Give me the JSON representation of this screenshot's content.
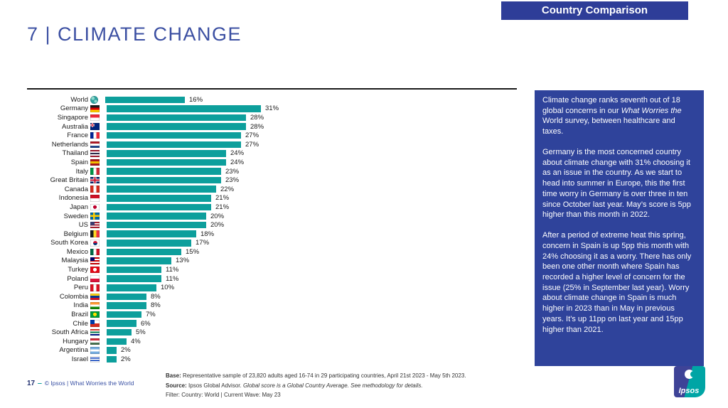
{
  "banner": {
    "label": "Country Comparison",
    "bg": "#2E3D98"
  },
  "title": "7 | CLIMATE CHANGE",
  "chart_data": {
    "type": "bar",
    "orientation": "horizontal",
    "title": "7 | CLIMATE CHANGE",
    "xlabel": "",
    "ylabel": "",
    "xlim": [
      0,
      35
    ],
    "grid": false,
    "value_suffix": "%",
    "bar_color": "#0D9F9C",
    "categories": [
      "World",
      "Germany",
      "Singapore",
      "Australia",
      "France",
      "Netherlands",
      "Thailand",
      "Spain",
      "Italy",
      "Great Britain",
      "Canada",
      "Indonesia",
      "Japan",
      "Sweden",
      "US",
      "Belgium",
      "South Korea",
      "Mexico",
      "Malaysia",
      "Turkey",
      "Poland",
      "Peru",
      "Colombia",
      "India",
      "Brazil",
      "Chile",
      "South Africa",
      "Hungary",
      "Argentina",
      "Israel"
    ],
    "values": [
      16,
      31,
      28,
      28,
      27,
      27,
      24,
      24,
      23,
      23,
      22,
      21,
      21,
      20,
      20,
      18,
      17,
      15,
      13,
      11,
      11,
      10,
      8,
      8,
      7,
      6,
      5,
      4,
      2,
      2
    ],
    "flag_icons": [
      {
        "type": "globe"
      },
      {
        "type": "h",
        "stripes": [
          "#1A1A1A",
          "#DD0000",
          "#FFCE00"
        ]
      },
      {
        "type": "h",
        "stripes": [
          "#ED2939",
          "#FFFFFF"
        ]
      },
      {
        "type": "canton",
        "stripes": [
          "#00247D"
        ],
        "corner": "jack"
      },
      {
        "type": "v",
        "stripes": [
          "#002395",
          "#FFFFFF",
          "#ED2939"
        ]
      },
      {
        "type": "h",
        "stripes": [
          "#AE1C28",
          "#FFFFFF",
          "#21468B"
        ]
      },
      {
        "type": "h",
        "stripes": [
          "#A51931",
          "#F4F5F8",
          "#2D2A4A",
          "#F4F5F8",
          "#A51931"
        ]
      },
      {
        "type": "h",
        "stripes": [
          "#AA151B",
          "#F1BF00",
          "#AA151B"
        ]
      },
      {
        "type": "v",
        "stripes": [
          "#009246",
          "#FFFFFF",
          "#CE2B37"
        ]
      },
      {
        "type": "jack"
      },
      {
        "type": "v",
        "stripes": [
          "#D52B1E",
          "#FFFFFF",
          "#D52B1E"
        ]
      },
      {
        "type": "h",
        "stripes": [
          "#CE1126",
          "#FFFFFF"
        ]
      },
      {
        "type": "disc",
        "bg": "#FFFFFF",
        "dot": "#BC002D"
      },
      {
        "type": "cross",
        "bg": "#006AA7",
        "cross": "#FECC00"
      },
      {
        "type": "canton",
        "stripes": [
          "#B22234",
          "#FFFFFF",
          "#B22234",
          "#FFFFFF",
          "#B22234"
        ],
        "corner": "#3C3B6E"
      },
      {
        "type": "v",
        "stripes": [
          "#1A1A1A",
          "#FDDA24",
          "#EF3340"
        ]
      },
      {
        "type": "taegeuk",
        "bg": "#FFFFFF",
        "top": "#C60C30",
        "bottom": "#003478"
      },
      {
        "type": "v",
        "stripes": [
          "#006847",
          "#FFFFFF",
          "#CE1126"
        ]
      },
      {
        "type": "canton",
        "stripes": [
          "#CC0001",
          "#FFFFFF",
          "#CC0001",
          "#FFFFFF",
          "#CC0001"
        ],
        "corner": "#010066"
      },
      {
        "type": "disc",
        "bg": "#E30A17",
        "dot": "#FFFFFF"
      },
      {
        "type": "h",
        "stripes": [
          "#FFFFFF",
          "#DC143C"
        ]
      },
      {
        "type": "v",
        "stripes": [
          "#D91023",
          "#FFFFFF",
          "#D91023"
        ]
      },
      {
        "type": "h",
        "stripes": [
          "#FCD116",
          "#003893",
          "#CE1126"
        ]
      },
      {
        "type": "h",
        "stripes": [
          "#FF9933",
          "#FFFFFF",
          "#138808"
        ]
      },
      {
        "type": "disc",
        "bg": "#009B3A",
        "dot": "#FEDF00"
      },
      {
        "type": "canton",
        "stripes": [
          "#FFFFFF",
          "#D52B1E"
        ],
        "corner": "#0039A6"
      },
      {
        "type": "h",
        "stripes": [
          "#E03C31",
          "#FFFFFF",
          "#007749",
          "#FFFFFF",
          "#001489"
        ]
      },
      {
        "type": "h",
        "stripes": [
          "#CE2939",
          "#FFFFFF",
          "#477050"
        ]
      },
      {
        "type": "h",
        "stripes": [
          "#74ACDF",
          "#FFFFFF",
          "#74ACDF"
        ]
      },
      {
        "type": "h",
        "stripes": [
          "#FFFFFF",
          "#0038B8",
          "#FFFFFF",
          "#0038B8",
          "#FFFFFF"
        ]
      }
    ]
  },
  "commentary": {
    "bg": "#2F439B",
    "paragraphs": [
      [
        {
          "text": "Climate change ranks seventh out of 18 global concerns in our "
        },
        {
          "text": "What Worries the",
          "italic": true
        },
        {
          "text": " World survey, between healthcare and taxes."
        }
      ],
      [
        {
          "text": "Germany is the most concerned country about climate change with 31% choosing it as an issue in the country. As we start to head into summer in Europe, this the first time worry in Germany is over three in ten since October last year. May’s score is 5pp higher than this month in 2022."
        }
      ],
      [
        {
          "text": "After a period of extreme heat this spring, concern in Spain is up 5pp this month with 24% choosing it as a worry. There has only been one other month where Spain has recorded a higher level of concern for the issue (25% in September last year). Worry about climate change in Spain is much higher in 2023 than in May in previous years. It’s up 11pp on last year and 15pp higher than 2021."
        }
      ]
    ]
  },
  "footer": {
    "page_number": "17",
    "dash": "‒",
    "copyright": "© Ipsos | What Worries the World",
    "base_label": "Base:",
    "base_text": " Representative sample of 23,820 adults aged 16-74 in 29 participating countries, April 21st 2023 - May 5th 2023.",
    "source_label": "Source:",
    "source_text": " Ipsos Global Advisor. ",
    "source_italic": "Global score is a Global Country Average. See methodology for details.",
    "filter_text": "Filter: Country: World | Current Wave: May 23"
  },
  "logo": {
    "text": "Ipsos",
    "left_color": "#3E4397",
    "right_color": "#00A5A5"
  }
}
